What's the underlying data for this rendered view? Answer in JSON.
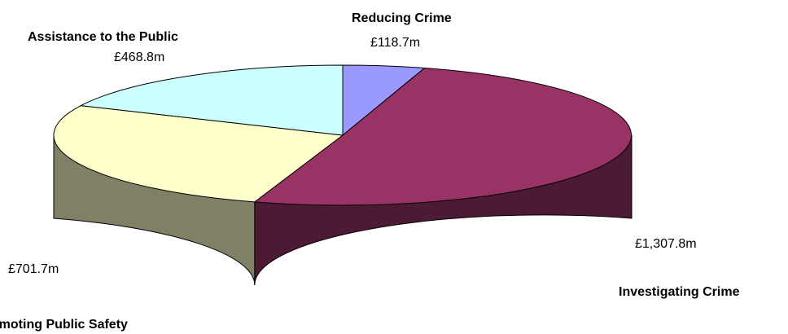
{
  "chart_data": {
    "type": "pie",
    "title": "",
    "slices": [
      {
        "label": "Reducing Crime",
        "value": 118.7,
        "value_label": "£118.7m",
        "color": "#9999FF",
        "side_color": "#4D4D80"
      },
      {
        "label": "Investigating Crime",
        "value": 1307.8,
        "value_label": "£1,307.8m",
        "color": "#993366",
        "side_color": "#4D1A33"
      },
      {
        "label": "Promoting Public Safety",
        "value": 701.7,
        "value_label": "£701.7m",
        "color": "#FFFFCC",
        "side_color": "#808066"
      },
      {
        "label": "Assistance to the Public",
        "value": 468.8,
        "value_label": "£468.8m",
        "color": "#CCFFFF",
        "side_color": "#668080"
      }
    ],
    "start_angle_deg": 90,
    "direction": "clockwise",
    "style": "3d"
  }
}
